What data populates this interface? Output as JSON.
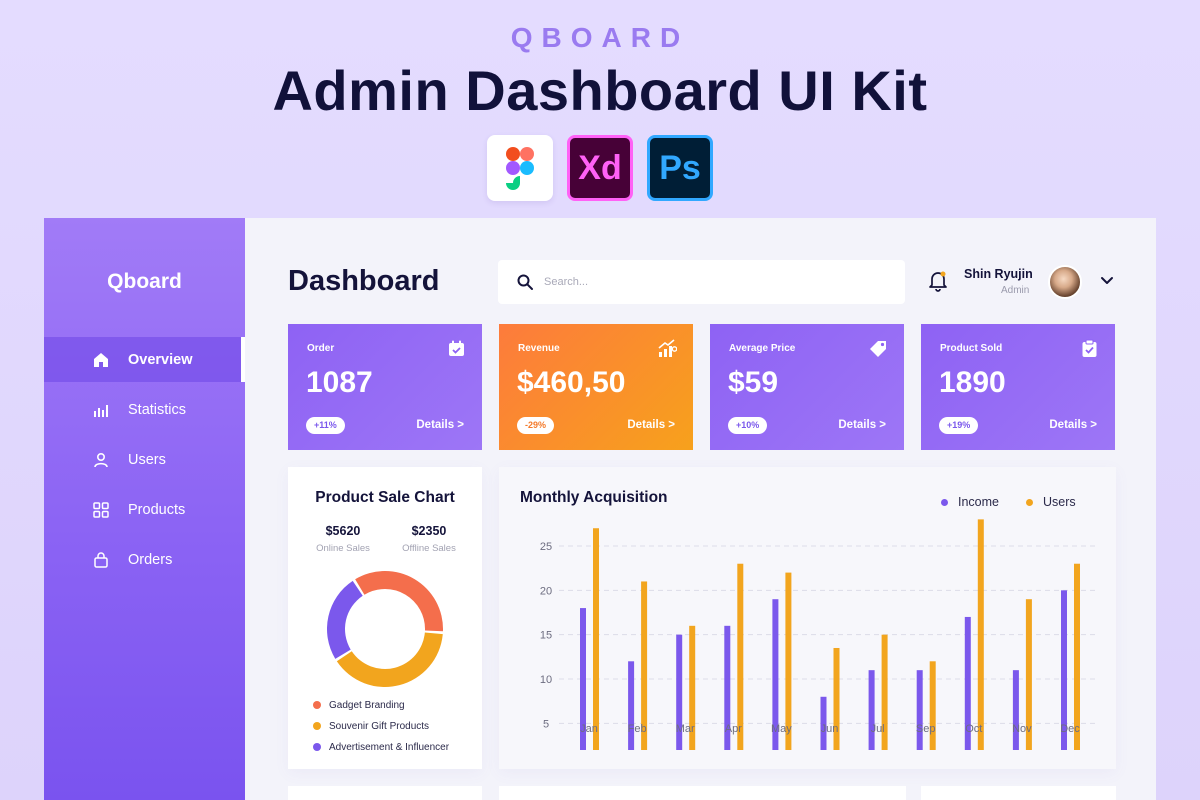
{
  "hero": {
    "brand": "QBOARD",
    "title": "Admin Dashboard UI Kit",
    "tools": [
      {
        "name": "figma-icon",
        "label": ""
      },
      {
        "name": "adobe-xd-icon",
        "label": "Xd"
      },
      {
        "name": "photoshop-icon",
        "label": "Ps"
      }
    ]
  },
  "sidebar": {
    "logo": "Qboard",
    "items": [
      {
        "label": "Overview",
        "icon": "home-icon",
        "active": true
      },
      {
        "label": "Statistics",
        "icon": "statistics-icon",
        "active": false
      },
      {
        "label": "Users",
        "icon": "user-icon",
        "active": false
      },
      {
        "label": "Products",
        "icon": "grid-icon",
        "active": false
      },
      {
        "label": "Orders",
        "icon": "bag-icon",
        "active": false
      }
    ]
  },
  "header": {
    "title": "Dashboard",
    "search_placeholder": "Search...",
    "user_name": "Shin Ryujin",
    "user_role": "Admin"
  },
  "stats": [
    {
      "label": "Order",
      "value": "1087",
      "badge": "+11%",
      "details": "Details >",
      "icon": "calendar-icon"
    },
    {
      "label": "Revenue",
      "value": "$460,50",
      "badge": "-29%",
      "details": "Details >",
      "icon": "growth-chart-icon"
    },
    {
      "label": "Average Price",
      "value": "$59",
      "badge": "+10%",
      "details": "Details >",
      "icon": "price-tag-icon"
    },
    {
      "label": "Product Sold",
      "value": "1890",
      "badge": "+19%",
      "details": "Details >",
      "icon": "clipboard-check-icon"
    }
  ],
  "product_sale": {
    "title": "Product Sale Chart",
    "online_value": "$5620",
    "online_label": "Online Sales",
    "offline_value": "$2350",
    "offline_label": "Offline Sales",
    "segments": [
      {
        "label": "Gadget Branding",
        "color": "#f46e4c",
        "value": 35
      },
      {
        "label": "Souvenir Gift Products",
        "color": "#f2a51e",
        "value": 40
      },
      {
        "label": "Advertisement & Influencer",
        "color": "#7b58ec",
        "value": 25
      }
    ]
  },
  "chart_data": {
    "type": "bar",
    "title": "Monthly Acquisition",
    "categories": [
      "Jan",
      "Feb",
      "Mar",
      "Apr",
      "May",
      "Jun",
      "Jul",
      "Sep",
      "Oct",
      "Nov",
      "Dec"
    ],
    "series": [
      {
        "name": "Income",
        "color": "#7b58ec",
        "values": [
          18,
          12,
          15,
          16,
          19,
          8,
          11,
          11,
          17,
          11,
          20
        ]
      },
      {
        "name": "Users",
        "color": "#f2a51e",
        "values": [
          27,
          21,
          16,
          23,
          22,
          13.5,
          15,
          12,
          28,
          19,
          23
        ]
      }
    ],
    "yticks": [
      5,
      10,
      15,
      20,
      25
    ],
    "ylim": [
      2,
      29
    ],
    "grid": true,
    "legend_position": "top-right"
  }
}
